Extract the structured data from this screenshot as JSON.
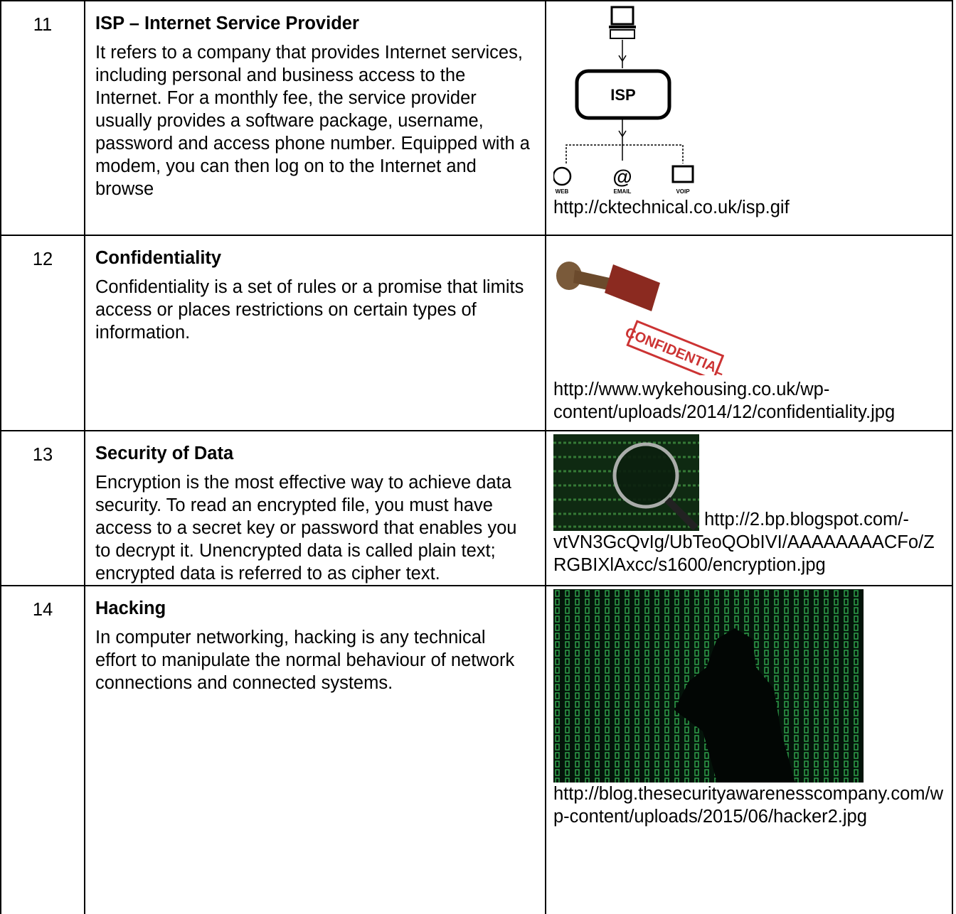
{
  "rows": [
    {
      "number": "11",
      "title": "ISP – Internet Service Provider",
      "body": "It refers to a company that provides Internet services, including personal and business access to the Internet. For a monthly fee, the service provider usually provides a software package, username, password and access phone number. Equipped with a modem, you can then log on to the Internet and browse",
      "image_url": "http://cktechnical.co.uk/isp.gif",
      "image_labels": [
        "ISP",
        "WEB",
        "EMAIL",
        "VOIP"
      ]
    },
    {
      "number": "12",
      "title": "Confidentiality",
      "body": "Confidentiality is a set of rules or a promise that limits access or places restrictions on certain types of information.",
      "image_url": "http://www.wykehousing.co.uk/wp-content/uploads/2014/12/confidentiality.jpg",
      "image_labels": [
        "CONFIDENTIAL"
      ]
    },
    {
      "number": "13",
      "title": "Security of Data",
      "body": "Encryption is the most effective way to achieve data security. To read an encrypted file, you must have access to a secret key or password that enables you to decrypt it. Unencrypted data is called plain text; encrypted data is referred to as cipher text.",
      "image_url": "http://2.bp.blogspot.com/-vtVN3GcQvIg/UbTeoQObIVI/AAAAAAAACFo/ZRGBIXlAxcc/s1600/encryption.jpg"
    },
    {
      "number": "14",
      "title": "Hacking",
      "body": "In computer networking, hacking is any technical effort to manipulate the normal behaviour of network connections and connected systems.",
      "image_url": "http://blog.thesecurityawarenesscompany.com/wp-content/uploads/2015/06/hacker2.jpg"
    }
  ]
}
